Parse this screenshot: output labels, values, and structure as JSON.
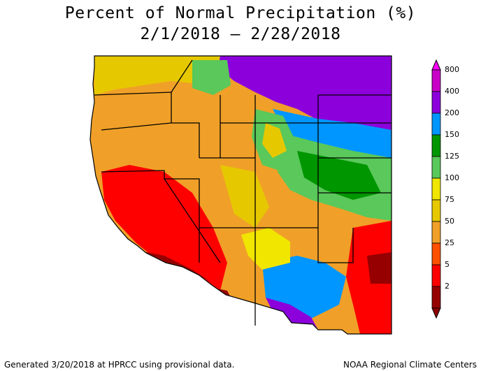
{
  "title": {
    "line1": "Percent of Normal Precipitation (%)",
    "line2": "2/1/2018 – 2/28/2018"
  },
  "legend": {
    "labels": [
      "800",
      "400",
      "200",
      "150",
      "125",
      "100",
      "75",
      "50",
      "25",
      "5",
      "2"
    ],
    "colors": [
      "#c800c8",
      "#8c00dc",
      "#0096ff",
      "#009600",
      "#5ac85a",
      "#f0e600",
      "#e6c800",
      "#f0a028",
      "#ff5000",
      "#ff0000",
      "#960000"
    ],
    "top_color": "#ff00ff",
    "bottom_color": "#8c0000"
  },
  "footer": {
    "left": "Generated 3/20/2018 at HPRCC using provisional data.",
    "right": "NOAA Regional Climate Centers"
  }
}
